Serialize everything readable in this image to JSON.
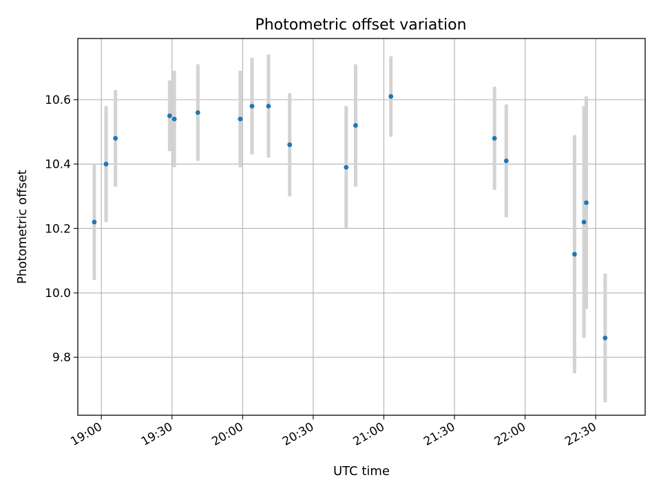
{
  "chart_data": {
    "type": "scatter",
    "title": "Photometric offset variation",
    "xlabel": "UTC time",
    "ylabel": "Photometric offset",
    "grid": true,
    "xlim": [
      "18:50",
      "22:51"
    ],
    "ylim": [
      9.62,
      10.79
    ],
    "x_ticks": [
      "19:00",
      "19:30",
      "20:00",
      "20:30",
      "21:00",
      "21:30",
      "22:00",
      "22:30"
    ],
    "y_ticks": [
      9.8,
      10.0,
      10.2,
      10.4,
      10.6
    ],
    "y_tick_labels": [
      "9.8",
      "10.0",
      "10.2",
      "10.4",
      "10.6"
    ],
    "point_color": "#1f77b4",
    "errorbar_color": "#d3d3d3",
    "points": [
      {
        "x": "18:57",
        "y": 10.22,
        "err": 0.18
      },
      {
        "x": "19:02",
        "y": 10.4,
        "err": 0.18
      },
      {
        "x": "19:06",
        "y": 10.48,
        "err": 0.15
      },
      {
        "x": "19:29",
        "y": 10.55,
        "err": 0.11
      },
      {
        "x": "19:31",
        "y": 10.54,
        "err": 0.15
      },
      {
        "x": "19:41",
        "y": 10.56,
        "err": 0.15
      },
      {
        "x": "19:59",
        "y": 10.54,
        "err": 0.15
      },
      {
        "x": "20:04",
        "y": 10.58,
        "err": 0.15
      },
      {
        "x": "20:11",
        "y": 10.58,
        "err": 0.16
      },
      {
        "x": "20:20",
        "y": 10.46,
        "err": 0.16
      },
      {
        "x": "20:44",
        "y": 10.39,
        "err": 0.19
      },
      {
        "x": "20:48",
        "y": 10.52,
        "err": 0.19
      },
      {
        "x": "21:03",
        "y": 10.61,
        "err": 0.125
      },
      {
        "x": "21:47",
        "y": 10.48,
        "err": 0.16
      },
      {
        "x": "21:52",
        "y": 10.41,
        "err": 0.175
      },
      {
        "x": "22:21",
        "y": 10.12,
        "err": 0.37
      },
      {
        "x": "22:25",
        "y": 10.22,
        "err": 0.36
      },
      {
        "x": "22:26",
        "y": 10.28,
        "err": 0.33
      },
      {
        "x": "22:34",
        "y": 9.86,
        "err": 0.2
      }
    ]
  }
}
